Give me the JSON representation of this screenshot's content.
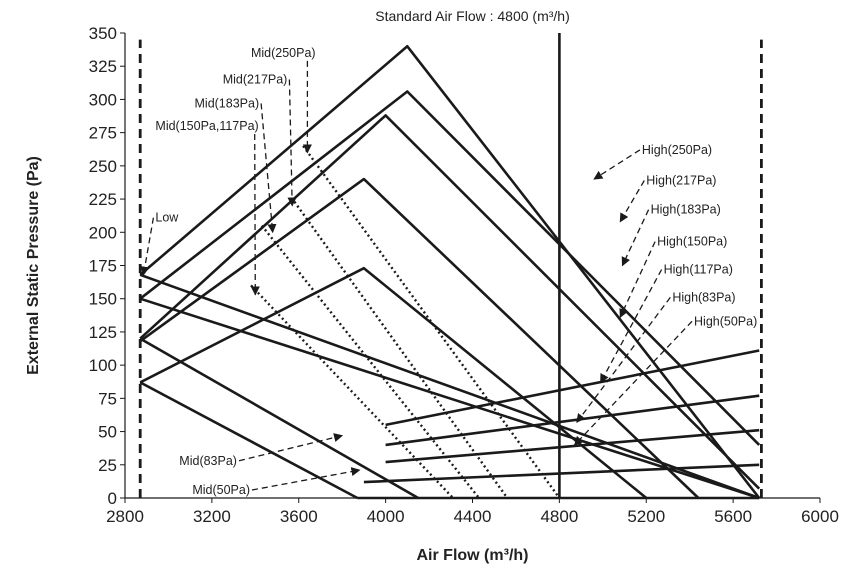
{
  "chart_data": {
    "type": "line",
    "title": "Standard Air Flow : 4800 (m³/h)",
    "xlabel": "Air Flow (m³/h)",
    "ylabel": "External Static Pressure (Pa)",
    "xlim": [
      2800,
      6000
    ],
    "ylim": [
      0,
      350
    ],
    "x_ticks": [
      2800,
      3200,
      3600,
      4000,
      4400,
      4800,
      5200,
      5600,
      6000
    ],
    "y_ticks": [
      0,
      25,
      50,
      75,
      100,
      125,
      150,
      175,
      200,
      225,
      250,
      275,
      300,
      325,
      350
    ],
    "grid": false,
    "colors": {
      "line": "#1a1a1a",
      "text": "#222222"
    },
    "series": [
      {
        "style": "solid",
        "x": [
          2870,
          4100,
          5720
        ],
        "y": [
          168,
          340,
          0
        ]
      },
      {
        "style": "solid",
        "x": [
          2870,
          4100,
          5720
        ],
        "y": [
          150,
          306,
          40
        ]
      },
      {
        "style": "solid",
        "x": [
          2870,
          4000,
          5720
        ],
        "y": [
          120,
          288,
          7
        ]
      },
      {
        "style": "solid",
        "x": [
          2870,
          3900,
          5440
        ],
        "y": [
          118,
          240,
          0
        ]
      },
      {
        "style": "solid",
        "x": [
          2870,
          3900,
          5200
        ],
        "y": [
          87,
          173,
          0
        ]
      },
      {
        "style": "solid",
        "x": [
          2870,
          5720
        ],
        "y": [
          168,
          0
        ]
      },
      {
        "style": "solid",
        "x": [
          2870,
          5720
        ],
        "y": [
          150,
          0
        ]
      },
      {
        "style": "solid",
        "x": [
          2870,
          4150
        ],
        "y": [
          120,
          0
        ]
      },
      {
        "style": "solid",
        "x": [
          2870,
          3870
        ],
        "y": [
          87,
          0
        ]
      },
      {
        "style": "solid",
        "x": [
          4000,
          5720
        ],
        "y": [
          55,
          111
        ]
      },
      {
        "style": "solid",
        "x": [
          4000,
          5720
        ],
        "y": [
          40,
          77
        ]
      },
      {
        "style": "solid",
        "x": [
          4000,
          5720
        ],
        "y": [
          27,
          51
        ]
      },
      {
        "style": "solid",
        "x": [
          3900,
          5720
        ],
        "y": [
          12,
          25
        ]
      },
      {
        "style": "solid",
        "x": [
          3870,
          5720
        ],
        "y": [
          0,
          0
        ]
      },
      {
        "style": "solid",
        "x": [
          4800,
          4800
        ],
        "y": [
          0,
          350
        ]
      },
      {
        "style": "dashed",
        "x": [
          2870,
          2870
        ],
        "y": [
          0,
          345
        ]
      },
      {
        "style": "dashed",
        "x": [
          5730,
          5730
        ],
        "y": [
          0,
          345
        ]
      },
      {
        "style": "dotted",
        "x": [
          3620,
          4800
        ],
        "y": [
          265,
          0
        ]
      },
      {
        "style": "dotted",
        "x": [
          3580,
          4560
        ],
        "y": [
          223,
          0
        ]
      },
      {
        "style": "dotted",
        "x": [
          3430,
          4430
        ],
        "y": [
          205,
          0
        ]
      },
      {
        "style": "dotted",
        "x": [
          3380,
          4310
        ],
        "y": [
          160,
          0
        ]
      }
    ],
    "annotations": [
      {
        "text": "Mid(250Pa)",
        "x": 3380,
        "y": 335,
        "arrow_to": [
          3640,
          260
        ]
      },
      {
        "text": "Mid(217Pa)",
        "x": 3250,
        "y": 315,
        "arrow_to": [
          3570,
          220
        ]
      },
      {
        "text": "Mid(183Pa)",
        "x": 3120,
        "y": 297,
        "arrow_to": [
          3480,
          200
        ]
      },
      {
        "text": "Mid(150Pa,117Pa)",
        "x": 2940,
        "y": 280,
        "arrow_to": [
          3400,
          153
        ]
      },
      {
        "text": "Low",
        "x": 2940,
        "y": 211,
        "arrow_to": [
          2885,
          168
        ]
      },
      {
        "text": "High(250Pa)",
        "x": 5180,
        "y": 262,
        "arrow_to": [
          4960,
          240
        ]
      },
      {
        "text": "High(217Pa)",
        "x": 5200,
        "y": 239,
        "arrow_to": [
          5080,
          208
        ]
      },
      {
        "text": "High(183Pa)",
        "x": 5220,
        "y": 217,
        "arrow_to": [
          5090,
          175
        ]
      },
      {
        "text": "High(150Pa)",
        "x": 5250,
        "y": 193,
        "arrow_to": [
          5080,
          136
        ]
      },
      {
        "text": "High(117Pa)",
        "x": 5280,
        "y": 172,
        "arrow_to": [
          4990,
          87
        ]
      },
      {
        "text": "High(83Pa)",
        "x": 5320,
        "y": 151,
        "arrow_to": [
          4880,
          57
        ]
      },
      {
        "text": "High(50Pa)",
        "x": 5420,
        "y": 133,
        "arrow_to": [
          4870,
          40
        ]
      },
      {
        "text": "Mid(83Pa)",
        "x": 3050,
        "y": 28,
        "arrow_to": [
          3800,
          47
        ]
      },
      {
        "text": "Mid(50Pa)",
        "x": 3110,
        "y": 6,
        "arrow_to": [
          3880,
          21
        ]
      }
    ]
  }
}
